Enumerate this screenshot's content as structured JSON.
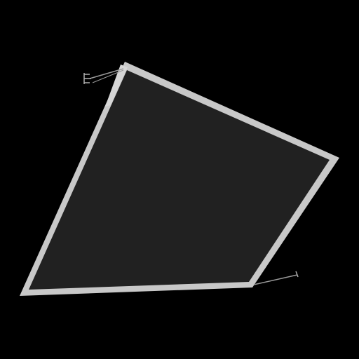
{
  "scene": {
    "background_color": "#000000",
    "panel": {
      "fill_color": "#212121",
      "frame_color": "#c8c8c8",
      "highlight_color": "#d6d6d6"
    },
    "wires": {
      "color": "#9a9a9a",
      "connector_color": "#b0b0b0"
    }
  }
}
